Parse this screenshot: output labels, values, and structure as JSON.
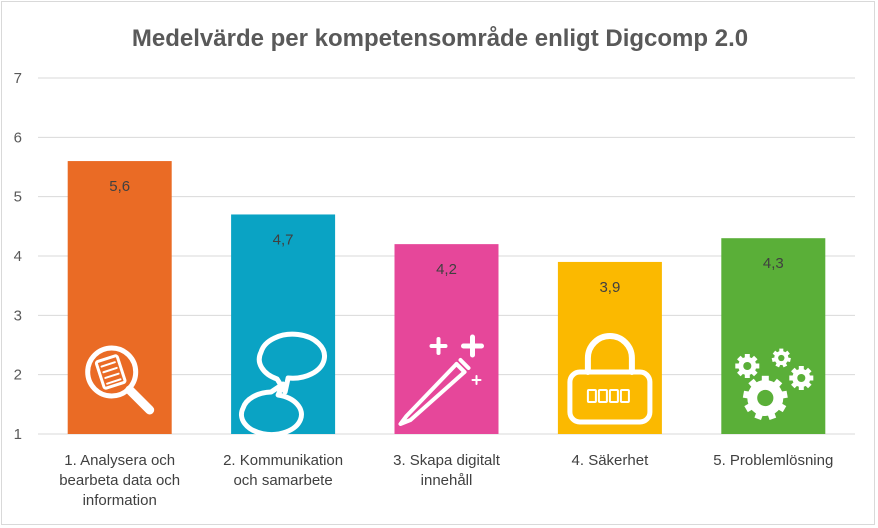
{
  "chart_data": {
    "type": "bar",
    "title": "Medelvärde per kompetensområde enligt Digcomp 2.0",
    "xlabel": "",
    "ylabel": "",
    "ylim": [
      1,
      7
    ],
    "yticks": [
      "1",
      "2",
      "3",
      "4",
      "5",
      "6",
      "7"
    ],
    "grid": true,
    "legend": "none",
    "categories": [
      "1. Analysera och bearbeta data och information",
      "2. Kommunikation och samarbete",
      "3. Skapa digitalt innehåll",
      "4. Säkerhet",
      "5. Problemlösning"
    ],
    "category_lines": [
      [
        "1. Analysera och",
        "bearbeta data och",
        "information"
      ],
      [
        "2. Kommunikation",
        "och samarbete"
      ],
      [
        "3. Skapa digitalt",
        "innehåll"
      ],
      [
        "4. Säkerhet"
      ],
      [
        "5. Problemlösning"
      ]
    ],
    "values": [
      5.6,
      4.7,
      4.2,
      3.9,
      4.3
    ],
    "data_labels": [
      "5,6",
      "4,7",
      "4,2",
      "3,9",
      "4,3"
    ],
    "colors": [
      "#ea6b25",
      "#0aa3c4",
      "#e6479a",
      "#fbb900",
      "#5aaf38"
    ],
    "icons": [
      "magnifier-document-icon",
      "speech-bubbles-icon",
      "pen-sparkle-icon",
      "padlock-icon",
      "gears-icon"
    ]
  }
}
